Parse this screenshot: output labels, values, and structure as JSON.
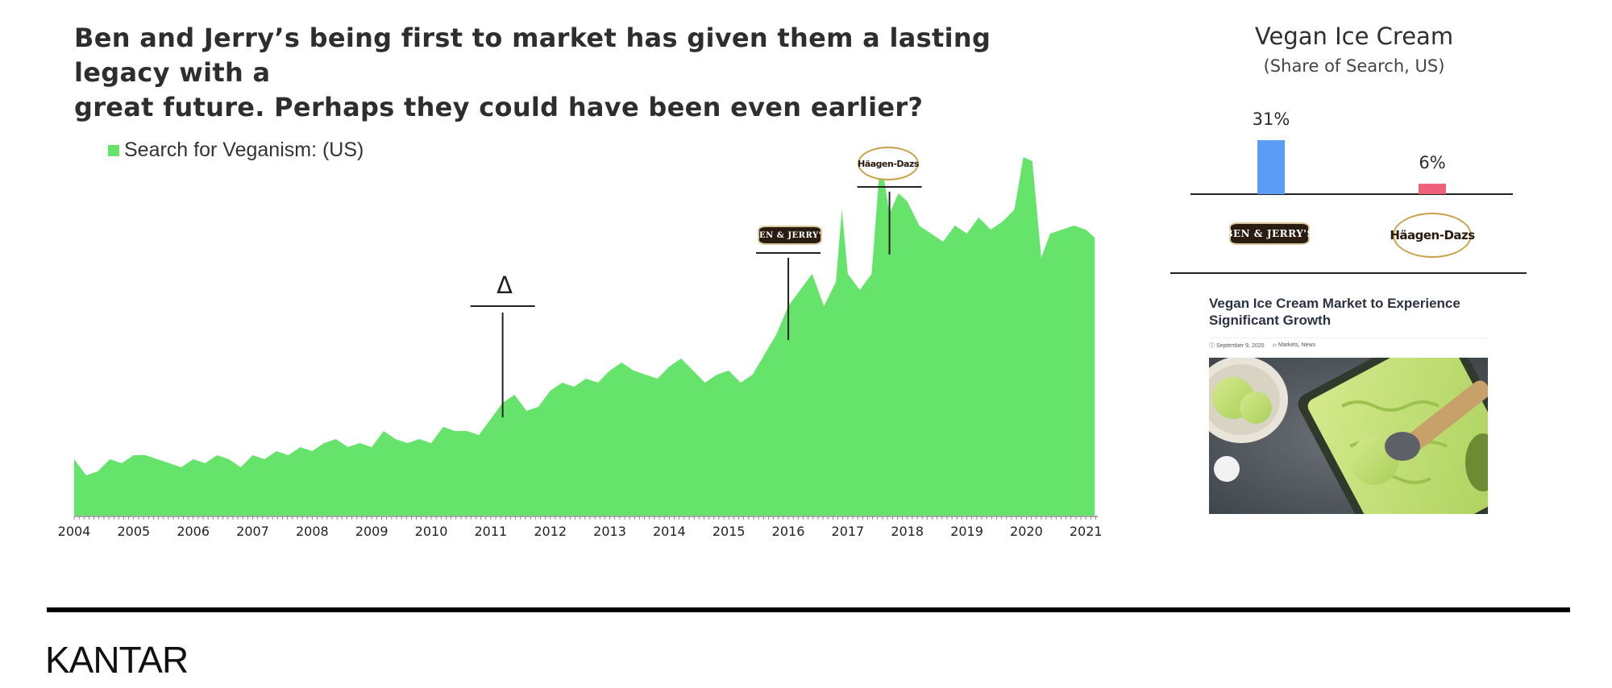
{
  "headline": {
    "line1": "Ben and Jerry’s being first to market has given them a lasting legacy with a",
    "line2": "great future. Perhaps they could have been even earlier?"
  },
  "chart_data": [
    {
      "type": "area",
      "series": [
        {
          "name": "Search for Veganism: (US)",
          "color": "#66e36a"
        }
      ],
      "x_labels": [
        "2004",
        "2005",
        "2006",
        "2007",
        "2008",
        "2009",
        "2010",
        "2011",
        "2012",
        "2013",
        "2014",
        "2015",
        "2016",
        "2017",
        "2018",
        "2019",
        "2020",
        "2021"
      ],
      "xlim": [
        2004,
        2021.2
      ],
      "ylim": [
        0,
        100
      ],
      "grid": false,
      "legend": "top-left",
      "values": [
        [
          2004.0,
          14
        ],
        [
          2004.2,
          10
        ],
        [
          2004.4,
          11
        ],
        [
          2004.6,
          14
        ],
        [
          2004.8,
          13
        ],
        [
          2005.0,
          15
        ],
        [
          2005.2,
          15
        ],
        [
          2005.4,
          14
        ],
        [
          2005.6,
          13
        ],
        [
          2005.8,
          12
        ],
        [
          2006.0,
          14
        ],
        [
          2006.2,
          13
        ],
        [
          2006.4,
          15
        ],
        [
          2006.6,
          14
        ],
        [
          2006.8,
          12
        ],
        [
          2007.0,
          15
        ],
        [
          2007.2,
          14
        ],
        [
          2007.4,
          16
        ],
        [
          2007.6,
          15
        ],
        [
          2007.8,
          17
        ],
        [
          2008.0,
          16
        ],
        [
          2008.2,
          18
        ],
        [
          2008.4,
          19
        ],
        [
          2008.6,
          17
        ],
        [
          2008.8,
          18
        ],
        [
          2009.0,
          17
        ],
        [
          2009.2,
          21
        ],
        [
          2009.4,
          19
        ],
        [
          2009.6,
          18
        ],
        [
          2009.8,
          19
        ],
        [
          2010.0,
          18
        ],
        [
          2010.2,
          22
        ],
        [
          2010.4,
          21
        ],
        [
          2010.6,
          21
        ],
        [
          2010.8,
          20
        ],
        [
          2011.0,
          24
        ],
        [
          2011.2,
          28
        ],
        [
          2011.4,
          30
        ],
        [
          2011.6,
          26
        ],
        [
          2011.8,
          27
        ],
        [
          2012.0,
          31
        ],
        [
          2012.2,
          33
        ],
        [
          2012.4,
          32
        ],
        [
          2012.6,
          34
        ],
        [
          2012.8,
          33
        ],
        [
          2013.0,
          36
        ],
        [
          2013.2,
          38
        ],
        [
          2013.4,
          36
        ],
        [
          2013.6,
          35
        ],
        [
          2013.8,
          34
        ],
        [
          2014.0,
          37
        ],
        [
          2014.2,
          39
        ],
        [
          2014.4,
          36
        ],
        [
          2014.6,
          33
        ],
        [
          2014.8,
          35
        ],
        [
          2015.0,
          36
        ],
        [
          2015.2,
          33
        ],
        [
          2015.4,
          35
        ],
        [
          2015.6,
          40
        ],
        [
          2015.8,
          45
        ],
        [
          2016.0,
          52
        ],
        [
          2016.2,
          56
        ],
        [
          2016.4,
          60
        ],
        [
          2016.6,
          52
        ],
        [
          2016.8,
          58
        ],
        [
          2016.9,
          76
        ],
        [
          2017.0,
          60
        ],
        [
          2017.2,
          56
        ],
        [
          2017.4,
          60
        ],
        [
          2017.55,
          89
        ],
        [
          2017.7,
          75
        ],
        [
          2017.85,
          80
        ],
        [
          2018.0,
          78
        ],
        [
          2018.2,
          72
        ],
        [
          2018.4,
          70
        ],
        [
          2018.6,
          68
        ],
        [
          2018.8,
          72
        ],
        [
          2019.0,
          70
        ],
        [
          2019.2,
          74
        ],
        [
          2019.4,
          71
        ],
        [
          2019.6,
          73
        ],
        [
          2019.8,
          76
        ],
        [
          2019.95,
          89
        ],
        [
          2020.1,
          88
        ],
        [
          2020.25,
          64
        ],
        [
          2020.4,
          70
        ],
        [
          2020.6,
          71
        ],
        [
          2020.8,
          72
        ],
        [
          2021.0,
          71
        ],
        [
          2021.15,
          69
        ]
      ],
      "annotations": [
        {
          "x": 2011.2,
          "label": "Δ"
        },
        {
          "x": 2016.0,
          "label": "BEN & JERRY'S",
          "kind": "logo"
        },
        {
          "x": 2017.7,
          "label": "Häagen-Dazs",
          "kind": "logo"
        }
      ]
    },
    {
      "type": "bar",
      "title": "Vegan Ice Cream",
      "subtitle": "(Share of Search, US)",
      "categories": [
        "BEN & JERRY'S",
        "Häagen-Dazs"
      ],
      "values": [
        31,
        6
      ],
      "value_labels": [
        "31%",
        "6%"
      ],
      "colors": [
        "#5b9cf5",
        "#f0607a"
      ],
      "ylim": [
        0,
        35
      ]
    }
  ],
  "article": {
    "title": "Vegan Ice Cream Market to Experience Significant Growth",
    "date": "ⓘ September 9, 2020",
    "categories": "▱ Markets, News"
  },
  "footer": {
    "brand": "KANTAR"
  }
}
